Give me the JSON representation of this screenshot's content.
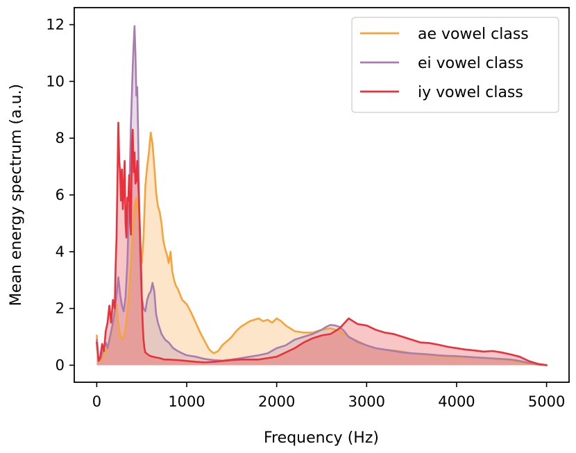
{
  "chart_data": {
    "type": "area",
    "title": "",
    "xlabel": "Frequency (Hz)",
    "ylabel": "Mean energy spectrum (a.u.)",
    "xlim": [
      -250,
      5250
    ],
    "ylim": [
      -0.6,
      12.6
    ],
    "xticks": [
      0,
      1000,
      2000,
      3000,
      4000,
      5000
    ],
    "yticks": [
      0,
      2,
      4,
      6,
      8,
      10,
      12
    ],
    "grid": false,
    "legend_position": "top-right",
    "series": [
      {
        "name": "ae vowel class",
        "color": "#f5a33a",
        "x": [
          0,
          20,
          40,
          60,
          80,
          100,
          120,
          140,
          160,
          180,
          200,
          220,
          240,
          260,
          280,
          300,
          320,
          340,
          360,
          380,
          400,
          420,
          440,
          460,
          480,
          500,
          520,
          540,
          560,
          580,
          600,
          620,
          640,
          660,
          680,
          700,
          720,
          740,
          760,
          780,
          800,
          820,
          840,
          860,
          880,
          900,
          950,
          1000,
          1050,
          1100,
          1150,
          1200,
          1250,
          1300,
          1350,
          1400,
          1450,
          1500,
          1550,
          1600,
          1650,
          1700,
          1750,
          1800,
          1850,
          1900,
          1950,
          2000,
          2050,
          2100,
          2150,
          2200,
          2300,
          2400,
          2500,
          2600,
          2700,
          2800,
          2900,
          3000,
          3100,
          3200,
          3300,
          3400,
          3500,
          3600,
          3700,
          3800,
          3900,
          4000,
          4100,
          4200,
          4300,
          4400,
          4500,
          4600,
          4700,
          4800,
          4900,
          5000
        ],
        "values": [
          1.05,
          0.2,
          0.15,
          0.2,
          0.35,
          0.5,
          0.6,
          0.8,
          1.1,
          1.5,
          1.9,
          2.1,
          1.5,
          1.1,
          0.9,
          1.0,
          1.3,
          1.9,
          2.6,
          3.5,
          4.6,
          5.6,
          5.9,
          5.4,
          4.4,
          3.6,
          4.5,
          6.3,
          7.0,
          7.5,
          8.2,
          7.8,
          7.0,
          6.1,
          5.6,
          5.4,
          5.0,
          4.4,
          4.1,
          3.9,
          3.6,
          4.0,
          3.3,
          3.0,
          2.8,
          2.7,
          2.3,
          2.15,
          1.85,
          1.5,
          1.15,
          0.85,
          0.55,
          0.42,
          0.5,
          0.72,
          0.85,
          1.0,
          1.2,
          1.35,
          1.45,
          1.55,
          1.6,
          1.65,
          1.55,
          1.6,
          1.5,
          1.65,
          1.55,
          1.4,
          1.3,
          1.2,
          1.15,
          1.15,
          1.25,
          1.3,
          1.2,
          1.0,
          0.85,
          0.7,
          0.6,
          0.55,
          0.52,
          0.48,
          0.42,
          0.38,
          0.35,
          0.32,
          0.3,
          0.28,
          0.28,
          0.27,
          0.25,
          0.22,
          0.2,
          0.16,
          0.1,
          0.05,
          0.02,
          0.0
        ]
      },
      {
        "name": "ei vowel class",
        "color": "#a87cae",
        "x": [
          0,
          20,
          40,
          60,
          80,
          100,
          120,
          140,
          160,
          180,
          200,
          220,
          240,
          260,
          280,
          300,
          320,
          340,
          360,
          380,
          400,
          410,
          420,
          430,
          440,
          450,
          460,
          470,
          480,
          490,
          500,
          520,
          540,
          560,
          580,
          600,
          620,
          640,
          660,
          680,
          700,
          720,
          740,
          760,
          780,
          800,
          850,
          900,
          950,
          1000,
          1100,
          1200,
          1300,
          1400,
          1500,
          1600,
          1700,
          1800,
          1900,
          2000,
          2100,
          2200,
          2300,
          2400,
          2500,
          2550,
          2600,
          2650,
          2700,
          2750,
          2800,
          2900,
          3000,
          3100,
          3200,
          3300,
          3400,
          3500,
          3600,
          3700,
          3800,
          3900,
          4000,
          4100,
          4200,
          4300,
          4400,
          4500,
          4600,
          4700,
          4800,
          4900,
          5000
        ],
        "values": [
          0.9,
          0.2,
          0.2,
          0.4,
          0.6,
          0.8,
          0.6,
          0.9,
          1.2,
          1.5,
          1.9,
          2.5,
          3.1,
          2.5,
          2.1,
          1.9,
          2.4,
          3.6,
          5.8,
          8.5,
          10.5,
          11.3,
          11.95,
          11.0,
          9.5,
          9.8,
          8.2,
          6.0,
          4.0,
          3.1,
          2.4,
          2.0,
          1.9,
          2.3,
          2.5,
          2.6,
          2.9,
          2.6,
          1.8,
          1.5,
          1.3,
          1.1,
          1.0,
          0.9,
          0.85,
          0.8,
          0.6,
          0.5,
          0.42,
          0.35,
          0.3,
          0.22,
          0.18,
          0.16,
          0.2,
          0.25,
          0.3,
          0.35,
          0.42,
          0.6,
          0.7,
          0.9,
          1.0,
          1.1,
          1.25,
          1.35,
          1.42,
          1.4,
          1.35,
          1.2,
          1.0,
          0.82,
          0.7,
          0.6,
          0.55,
          0.5,
          0.45,
          0.42,
          0.4,
          0.38,
          0.35,
          0.33,
          0.32,
          0.3,
          0.28,
          0.26,
          0.24,
          0.22,
          0.2,
          0.15,
          0.08,
          0.03,
          0.0
        ]
      },
      {
        "name": "iy vowel class",
        "color": "#e8313a",
        "x": [
          0,
          20,
          40,
          60,
          80,
          100,
          120,
          140,
          160,
          180,
          200,
          210,
          220,
          230,
          240,
          250,
          260,
          270,
          280,
          290,
          300,
          310,
          320,
          330,
          340,
          350,
          360,
          370,
          380,
          390,
          400,
          410,
          420,
          430,
          440,
          450,
          460,
          470,
          480,
          490,
          500,
          510,
          520,
          530,
          540,
          560,
          580,
          600,
          650,
          700,
          750,
          800,
          900,
          1000,
          1100,
          1200,
          1300,
          1400,
          1500,
          1600,
          1700,
          1800,
          1900,
          2000,
          2100,
          2200,
          2300,
          2400,
          2500,
          2600,
          2700,
          2800,
          2900,
          3000,
          3100,
          3200,
          3300,
          3400,
          3500,
          3600,
          3700,
          3800,
          3900,
          4000,
          4100,
          4200,
          4300,
          4400,
          4500,
          4600,
          4700,
          4800,
          4900,
          5000
        ],
        "values": [
          0.8,
          0.15,
          0.3,
          0.75,
          0.5,
          1.2,
          1.5,
          2.1,
          1.5,
          2.3,
          2.0,
          3.5,
          4.5,
          6.5,
          8.55,
          7.2,
          6.8,
          5.8,
          6.9,
          5.5,
          6.2,
          7.2,
          5.0,
          4.5,
          5.9,
          5.8,
          6.7,
          5.2,
          4.6,
          7.8,
          8.3,
          6.8,
          7.5,
          6.4,
          6.5,
          7.2,
          6.5,
          5.7,
          4.8,
          3.8,
          2.5,
          1.5,
          0.9,
          0.6,
          0.45,
          0.4,
          0.35,
          0.32,
          0.28,
          0.25,
          0.2,
          0.2,
          0.18,
          0.15,
          0.12,
          0.1,
          0.12,
          0.15,
          0.18,
          0.2,
          0.2,
          0.2,
          0.25,
          0.3,
          0.45,
          0.6,
          0.8,
          0.95,
          1.05,
          1.1,
          1.3,
          1.65,
          1.45,
          1.4,
          1.25,
          1.15,
          1.1,
          1.0,
          0.9,
          0.8,
          0.78,
          0.72,
          0.65,
          0.6,
          0.55,
          0.52,
          0.48,
          0.5,
          0.45,
          0.38,
          0.3,
          0.15,
          0.05,
          0.0
        ]
      }
    ]
  }
}
